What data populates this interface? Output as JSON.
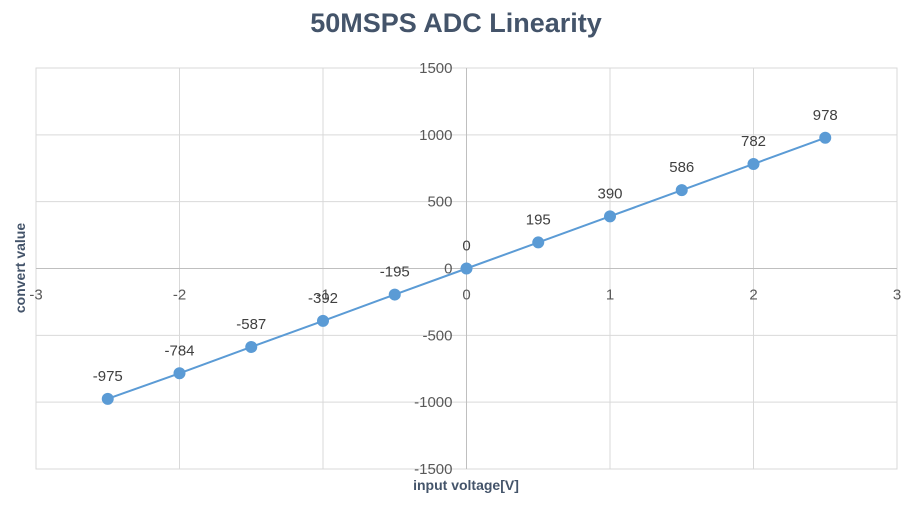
{
  "chart_data": {
    "type": "scatter",
    "title": "50MSPS ADC Linearity",
    "xlabel": "input voltage[V]",
    "ylabel": "convert value",
    "xlim": [
      -3,
      3
    ],
    "ylim": [
      -1500,
      1500
    ],
    "x_ticks": [
      -3,
      -2,
      -1,
      0,
      1,
      2,
      3
    ],
    "y_ticks": [
      -1500,
      -1000,
      -500,
      0,
      500,
      1000,
      1500
    ],
    "grid": true,
    "legend": "none",
    "line": "straight lines with markers",
    "color": "#5B9BD5",
    "series": [
      {
        "x": [
          -2.5,
          -2,
          -1.5,
          -1,
          -0.5,
          0,
          0.5,
          1,
          1.5,
          2,
          2.5
        ],
        "y": [
          -975,
          -784,
          -587,
          -392,
          -195,
          0,
          195,
          390,
          586,
          782,
          978
        ],
        "labels": [
          "-975",
          "-784",
          "-587",
          "-392",
          "-195",
          "0",
          "195",
          "390",
          "586",
          "782",
          "978"
        ]
      }
    ]
  }
}
